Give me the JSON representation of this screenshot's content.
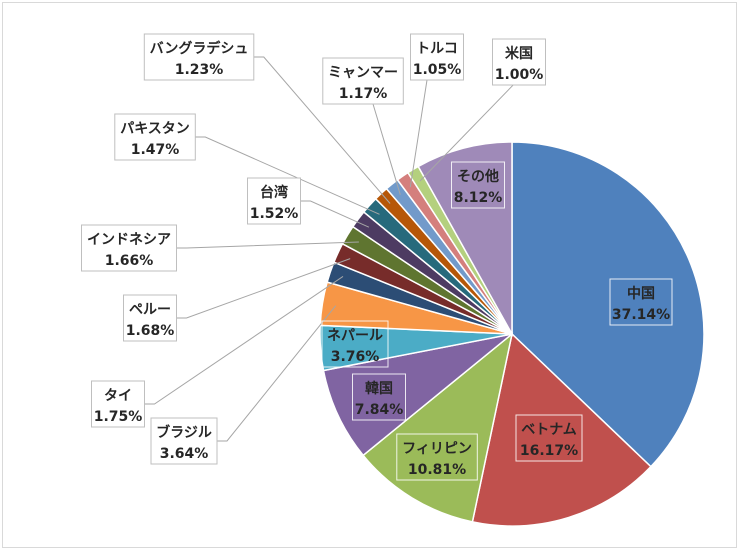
{
  "chart_data": {
    "type": "pie",
    "title": "",
    "slices": [
      {
        "name": "中国",
        "value": 37.14,
        "display": "37.14%",
        "color": "#4f81bd"
      },
      {
        "name": "ベトナム",
        "value": 16.17,
        "display": "16.17%",
        "color": "#c0504d"
      },
      {
        "name": "フィリピン",
        "value": 10.81,
        "display": "10.81%",
        "color": "#9bbb59"
      },
      {
        "name": "韓国",
        "value": 7.84,
        "display": "7.84%",
        "color": "#8064a2"
      },
      {
        "name": "ネパール",
        "value": 3.76,
        "display": "3.76%",
        "color": "#4bacc6"
      },
      {
        "name": "ブラジル",
        "value": 3.64,
        "display": "3.64%",
        "color": "#f79646"
      },
      {
        "name": "タイ",
        "value": 1.75,
        "display": "1.75%",
        "color": "#2c4d75"
      },
      {
        "name": "ペルー",
        "value": 1.68,
        "display": "1.68%",
        "color": "#772c2a"
      },
      {
        "name": "インドネシア",
        "value": 1.66,
        "display": "1.66%",
        "color": "#5f7530"
      },
      {
        "name": "台湾",
        "value": 1.52,
        "display": "1.52%",
        "color": "#4d3b62"
      },
      {
        "name": "パキスタン",
        "value": 1.47,
        "display": "1.47%",
        "color": "#276a7c"
      },
      {
        "name": "バングラデシュ",
        "value": 1.23,
        "display": "1.23%",
        "color": "#b65708"
      },
      {
        "name": "ミャンマー",
        "value": 1.17,
        "display": "1.17%",
        "color": "#729aca"
      },
      {
        "name": "トルコ",
        "value": 1.05,
        "display": "1.05%",
        "color": "#d47f7d"
      },
      {
        "name": "米国",
        "value": 1.0,
        "display": "1.00%",
        "color": "#b4d07e"
      },
      {
        "name": "その他",
        "value": 8.12,
        "display": "8.12%",
        "color": "#9f8ab8"
      }
    ],
    "start_angle_deg": 0,
    "direction": "clockwise",
    "legend": "none",
    "data_labels": "category-and-percent"
  }
}
